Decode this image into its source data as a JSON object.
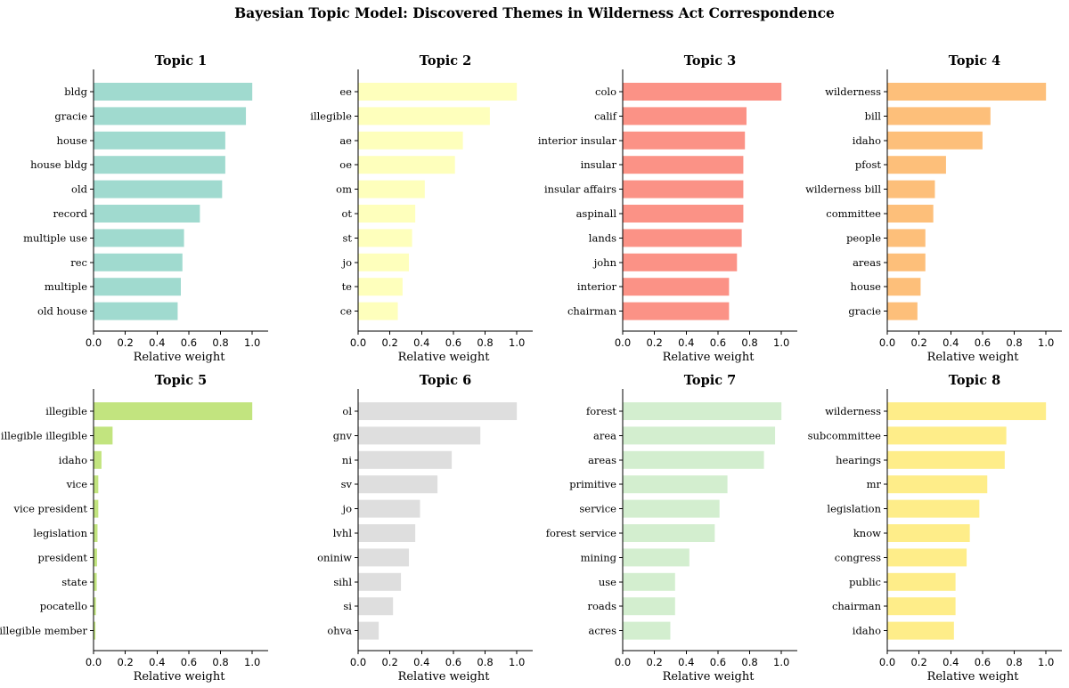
{
  "figure": {
    "title": "Bayesian Topic Model: Discovered Themes in Wilderness Act Correspondence"
  },
  "chart_data": [
    {
      "type": "bar",
      "orientation": "horizontal",
      "title": "Topic 1",
      "xlabel": "Relative weight",
      "ylabel": "",
      "color": "#a0dacf",
      "xlim": [
        0,
        1.1
      ],
      "xticks": [
        "0.0",
        "0.2",
        "0.4",
        "0.6",
        "0.8",
        "1.0"
      ],
      "categories": [
        "bldg",
        "gracie",
        "house",
        "house bldg",
        "old",
        "record",
        "multiple use",
        "rec",
        "multiple",
        "old house"
      ],
      "values": [
        1.0,
        0.96,
        0.83,
        0.83,
        0.81,
        0.67,
        0.57,
        0.56,
        0.55,
        0.53
      ]
    },
    {
      "type": "bar",
      "orientation": "horizontal",
      "title": "Topic 2",
      "xlabel": "Relative weight",
      "ylabel": "",
      "color": "#feffbc",
      "xlim": [
        0,
        1.1
      ],
      "xticks": [
        "0.0",
        "0.2",
        "0.4",
        "0.6",
        "0.8",
        "1.0"
      ],
      "categories": [
        "ee",
        "illegible",
        "ae",
        "oe",
        "om",
        "ot",
        "st",
        "jo",
        "te",
        "ce"
      ],
      "values": [
        1.0,
        0.83,
        0.66,
        0.61,
        0.42,
        0.36,
        0.34,
        0.32,
        0.28,
        0.25
      ]
    },
    {
      "type": "bar",
      "orientation": "horizontal",
      "title": "Topic 3",
      "xlabel": "Relative weight",
      "ylabel": "",
      "color": "#fb9286",
      "xlim": [
        0,
        1.1
      ],
      "xticks": [
        "0.0",
        "0.2",
        "0.4",
        "0.6",
        "0.8",
        "1.0"
      ],
      "categories": [
        "colo",
        "calif",
        "interior insular",
        "insular",
        "insular affairs",
        "aspinall",
        "lands",
        "john",
        "interior",
        "chairman"
      ],
      "values": [
        1.0,
        0.78,
        0.77,
        0.76,
        0.76,
        0.76,
        0.75,
        0.72,
        0.67,
        0.67
      ]
    },
    {
      "type": "bar",
      "orientation": "horizontal",
      "title": "Topic 4",
      "xlabel": "Relative weight",
      "ylabel": "",
      "color": "#fdbf7a",
      "xlim": [
        0,
        1.1
      ],
      "xticks": [
        "0.0",
        "0.2",
        "0.4",
        "0.6",
        "0.8",
        "1.0"
      ],
      "categories": [
        "wilderness",
        "bill",
        "idaho",
        "pfost",
        "wilderness bill",
        "committee",
        "people",
        "areas",
        "house",
        "gracie"
      ],
      "values": [
        1.0,
        0.65,
        0.6,
        0.37,
        0.3,
        0.29,
        0.24,
        0.24,
        0.21,
        0.19
      ]
    },
    {
      "type": "bar",
      "orientation": "horizontal",
      "title": "Topic 5",
      "xlabel": "Relative weight",
      "ylabel": "",
      "color": "#c2e47f",
      "xlim": [
        0,
        1.1
      ],
      "xticks": [
        "0.0",
        "0.2",
        "0.4",
        "0.6",
        "0.8",
        "1.0"
      ],
      "categories": [
        "illegible",
        "illegible illegible",
        "idaho",
        "vice",
        "vice president",
        "legislation",
        "president",
        "state",
        "pocatello",
        "illegible member"
      ],
      "values": [
        1.0,
        0.12,
        0.05,
        0.03,
        0.03,
        0.025,
        0.022,
        0.02,
        0.015,
        0.012
      ]
    },
    {
      "type": "bar",
      "orientation": "horizontal",
      "title": "Topic 6",
      "xlabel": "Relative weight",
      "ylabel": "",
      "color": "#dedede",
      "xlim": [
        0,
        1.1
      ],
      "xticks": [
        "0.0",
        "0.2",
        "0.4",
        "0.6",
        "0.8",
        "1.0"
      ],
      "categories": [
        "ol",
        "gnv",
        "ni",
        "sv",
        "jo",
        "lvhl",
        "oniniw",
        "sihl",
        "si",
        "ohva"
      ],
      "values": [
        1.0,
        0.77,
        0.59,
        0.5,
        0.39,
        0.36,
        0.32,
        0.27,
        0.22,
        0.13
      ]
    },
    {
      "type": "bar",
      "orientation": "horizontal",
      "title": "Topic 7",
      "xlabel": "Relative weight",
      "ylabel": "",
      "color": "#d3eecf",
      "xlim": [
        0,
        1.1
      ],
      "xticks": [
        "0.0",
        "0.2",
        "0.4",
        "0.6",
        "0.8",
        "1.0"
      ],
      "categories": [
        "forest",
        "area",
        "areas",
        "primitive",
        "service",
        "forest service",
        "mining",
        "use",
        "roads",
        "acres"
      ],
      "values": [
        1.0,
        0.96,
        0.89,
        0.66,
        0.61,
        0.58,
        0.42,
        0.33,
        0.33,
        0.3
      ]
    },
    {
      "type": "bar",
      "orientation": "horizontal",
      "title": "Topic 8",
      "xlabel": "Relative weight",
      "ylabel": "",
      "color": "#feed89",
      "xlim": [
        0,
        1.1
      ],
      "xticks": [
        "0.0",
        "0.2",
        "0.4",
        "0.6",
        "0.8",
        "1.0"
      ],
      "categories": [
        "wilderness",
        "subcommittee",
        "hearings",
        "mr",
        "legislation",
        "know",
        "congress",
        "public",
        "chairman",
        "idaho"
      ],
      "values": [
        1.0,
        0.75,
        0.74,
        0.63,
        0.58,
        0.52,
        0.5,
        0.43,
        0.43,
        0.42
      ]
    }
  ]
}
